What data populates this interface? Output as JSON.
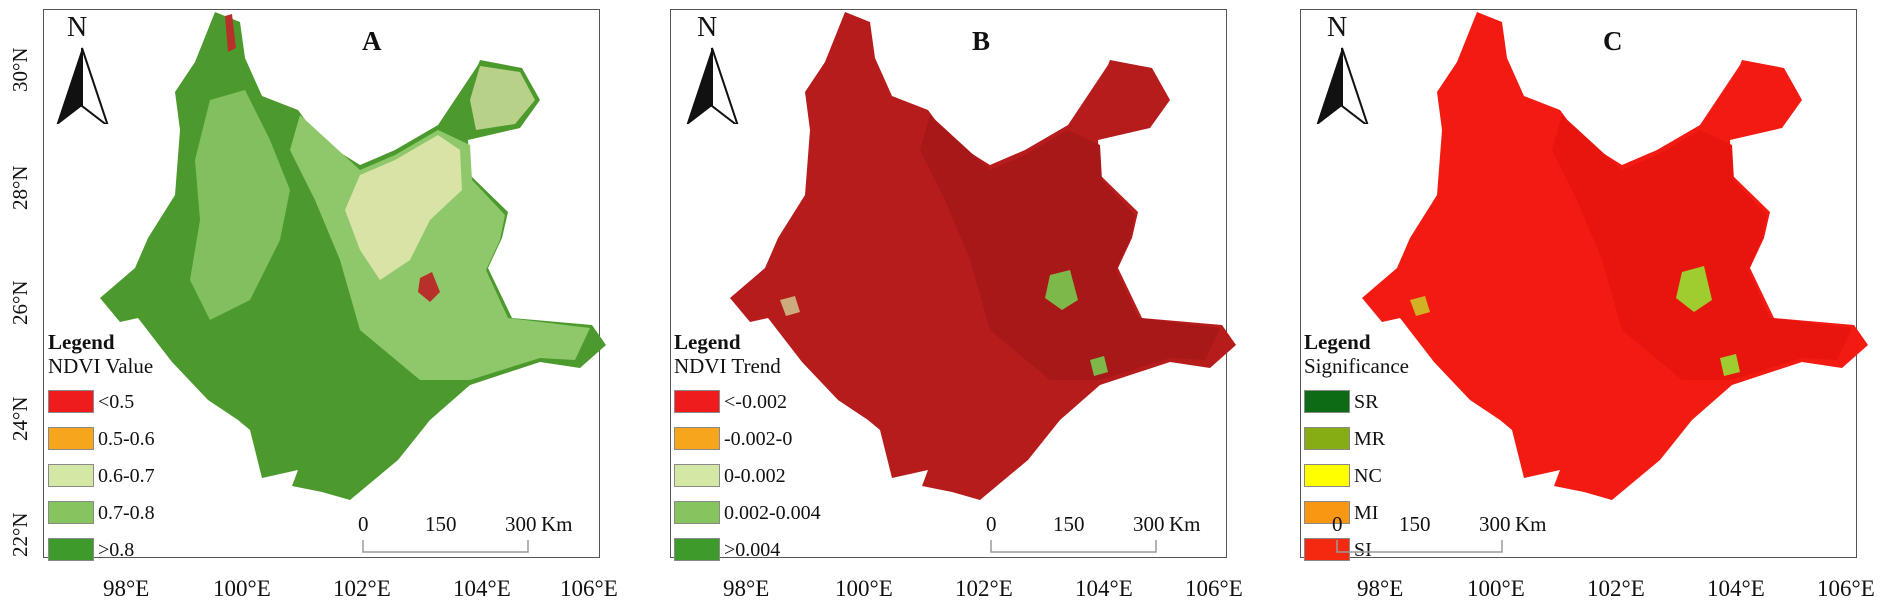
{
  "north_label": "N",
  "scale": {
    "zero": "0",
    "mid": "150",
    "end": "300",
    "unit": "Km"
  },
  "lat_ticks": [
    "30°N",
    "28°N",
    "26°N",
    "24°N",
    "22°N"
  ],
  "lon_ticks": [
    "98°E",
    "100°E",
    "102°E",
    "104°E",
    "106°E"
  ],
  "panels": [
    {
      "letter": "A",
      "legend_title": "Legend",
      "legend_subtitle": "NDVI Value",
      "map_colors": {
        "base": "#4c9a2e",
        "overlay1": "#8ec86b",
        "overlay2": "#e6e8b0",
        "accent": "#b8302a"
      },
      "legend_items": [
        {
          "label": "<0.5",
          "color": "#ee1c1c"
        },
        {
          "label": "0.5-0.6",
          "color": "#f7a51c"
        },
        {
          "label": "0.6-0.7",
          "color": "#d4e8a6"
        },
        {
          "label": "0.7-0.8",
          "color": "#86c45e"
        },
        {
          "label": ">0.8",
          "color": "#3f9a2c"
        }
      ]
    },
    {
      "letter": "B",
      "legend_title": "Legend",
      "legend_subtitle": "NDVI Trend",
      "map_colors": {
        "base": "#b71c1c",
        "overlay1": "#a81818",
        "overlay2": "#7cb84a",
        "accent": "#d4e8a6"
      },
      "legend_items": [
        {
          "label": "<-0.002",
          "color": "#ee1c1c"
        },
        {
          "label": "-0.002-0",
          "color": "#f7a51c"
        },
        {
          "label": "0-0.002",
          "color": "#d4e8a6"
        },
        {
          "label": "0.002-0.004",
          "color": "#86c45e"
        },
        {
          "label": ">0.004",
          "color": "#3f9a2c"
        }
      ]
    },
    {
      "letter": "C",
      "legend_title": "Legend",
      "legend_subtitle": "Significance",
      "map_colors": {
        "base": "#f31a12",
        "overlay1": "#e8150f",
        "overlay2": "#9fcc2e",
        "accent": "#c8d82a"
      },
      "legend_items": [
        {
          "label": "SR",
          "color": "#0d6b16"
        },
        {
          "label": "MR",
          "color": "#86ad14"
        },
        {
          "label": "NC",
          "color": "#ffff00"
        },
        {
          "label": "MI",
          "color": "#f99612"
        },
        {
          "label": "SI",
          "color": "#f42a10"
        }
      ]
    }
  ]
}
